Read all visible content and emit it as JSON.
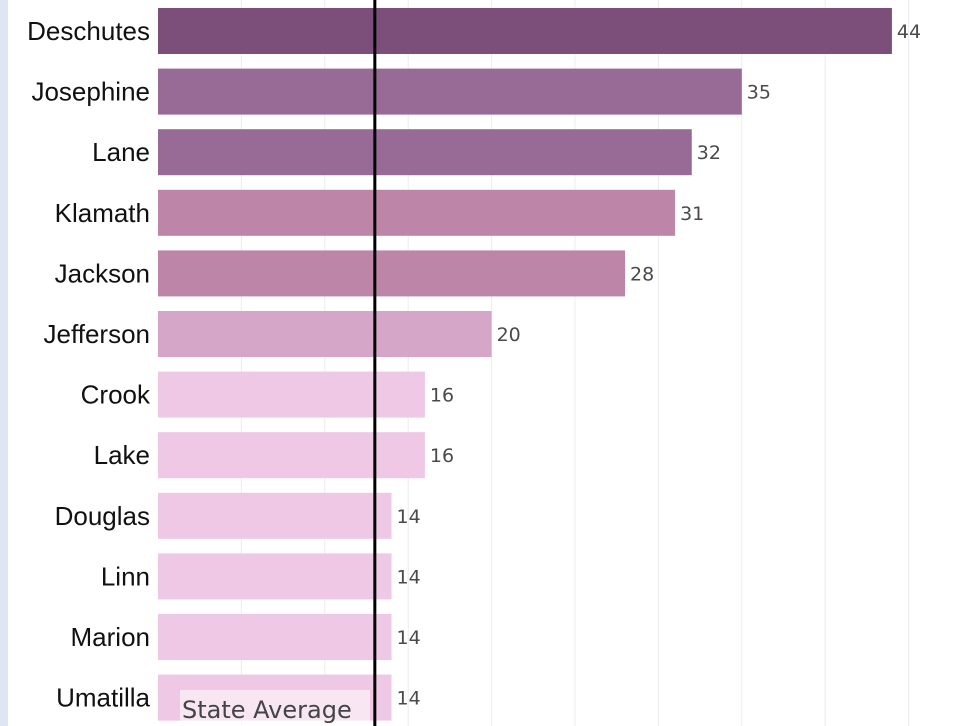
{
  "chart_data": {
    "type": "bar",
    "orientation": "horizontal",
    "categories": [
      "Deschutes",
      "Josephine",
      "Lane",
      "Klamath",
      "Jackson",
      "Jefferson",
      "Crook",
      "Lake",
      "Douglas",
      "Linn",
      "Marion",
      "Umatilla"
    ],
    "values": [
      44,
      35,
      32,
      31,
      28,
      20,
      16,
      16,
      14,
      14,
      14,
      14
    ],
    "colors": [
      "#7b4f79",
      "#986a96",
      "#986a96",
      "#bd86a9",
      "#bd86a9",
      "#d6a6c8",
      "#efc8e5",
      "#efc8e5",
      "#efc8e5",
      "#efc8e5",
      "#efc8e5",
      "#efc8e5"
    ],
    "xlim": [
      0,
      48
    ],
    "grid": true,
    "reference_line": {
      "value": 13,
      "label": "State Average",
      "color": "#000000"
    }
  }
}
